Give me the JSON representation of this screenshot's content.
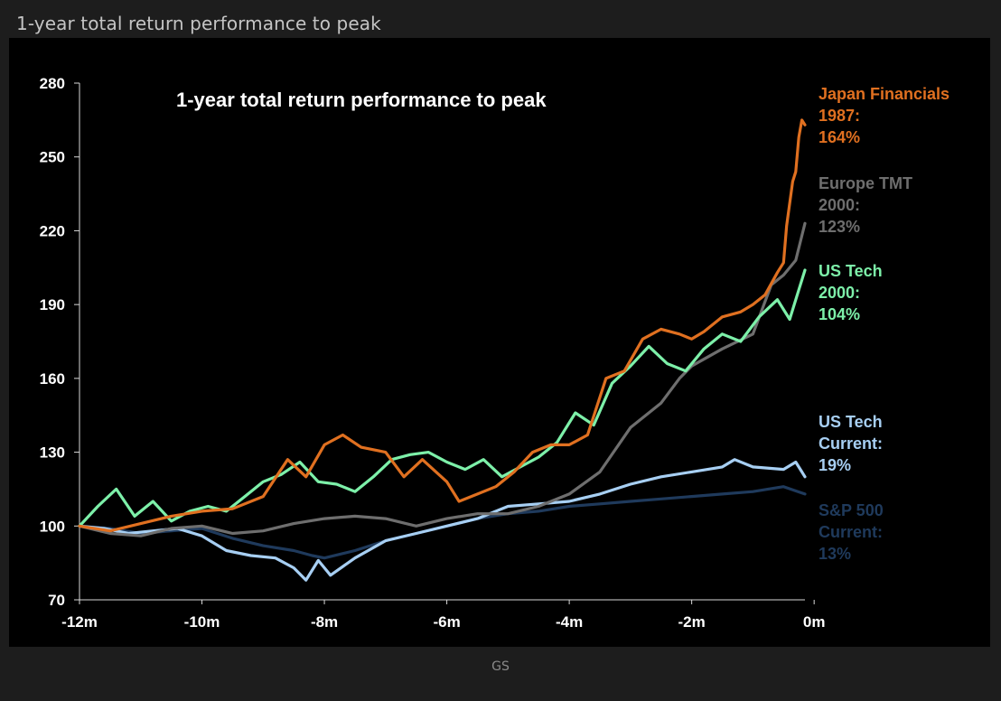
{
  "page_title": "1-year total return performance to peak",
  "source": "GS",
  "chart_data": {
    "type": "line",
    "title": "1-year total return performance to peak",
    "x_tick_labels": [
      "-12m",
      "-10m",
      "-8m",
      "-6m",
      "-4m",
      "-2m",
      "0m"
    ],
    "x_ticks_months": [
      -12,
      -10,
      -8,
      -6,
      -4,
      -2,
      0
    ],
    "xlim": [
      -12,
      -0.15
    ],
    "ylim": [
      70,
      280
    ],
    "y_ticks": [
      70,
      100,
      130,
      160,
      190,
      220,
      250,
      280
    ],
    "grid": false,
    "legend": "right (direct labels)",
    "series": [
      {
        "key": "sp500",
        "label_lines": [
          "S&P 500",
          "Current:",
          "13%"
        ],
        "color": "#1f3a5c",
        "x": [
          -12,
          -11.5,
          -11,
          -10.5,
          -10,
          -9.5,
          -9,
          -8.5,
          -8.2,
          -8,
          -7.5,
          -7,
          -6.5,
          -6,
          -5.5,
          -5,
          -4.5,
          -4,
          -3.5,
          -3,
          -2.5,
          -2,
          -1.5,
          -1,
          -0.5,
          -0.15
        ],
        "y": [
          100,
          99,
          97,
          98,
          99,
          95,
          92,
          90,
          88,
          87,
          90,
          94,
          97,
          100,
          103,
          105,
          106,
          108,
          109,
          110,
          111,
          112,
          113,
          114,
          116,
          113
        ]
      },
      {
        "key": "us_tech_current",
        "label_lines": [
          "US Tech",
          "Current:",
          "19%"
        ],
        "color": "#a7cff3",
        "x": [
          -12,
          -11.6,
          -11.2,
          -10.8,
          -10.4,
          -10,
          -9.6,
          -9.2,
          -8.8,
          -8.5,
          -8.3,
          -8.1,
          -7.9,
          -7.5,
          -7,
          -6.5,
          -6,
          -5.5,
          -5,
          -4.5,
          -4,
          -3.5,
          -3,
          -2.5,
          -2,
          -1.5,
          -1.3,
          -1,
          -0.5,
          -0.3,
          -0.15
        ],
        "y": [
          100,
          99,
          97,
          98,
          99,
          96,
          90,
          88,
          87,
          83,
          78,
          86,
          80,
          87,
          94,
          97,
          100,
          103,
          108,
          109,
          110,
          113,
          117,
          120,
          122,
          124,
          127,
          124,
          123,
          126,
          120
        ]
      },
      {
        "key": "europe_tmt_2000",
        "label_lines": [
          "Europe TMT",
          "2000:",
          "123%"
        ],
        "color": "#6e6e6e",
        "x": [
          -12,
          -11.5,
          -11,
          -10.5,
          -10,
          -9.5,
          -9,
          -8.5,
          -8,
          -7.5,
          -7,
          -6.5,
          -6,
          -5.5,
          -5,
          -4.5,
          -4,
          -3.5,
          -3,
          -2.5,
          -2.2,
          -2,
          -1.5,
          -1,
          -0.7,
          -0.5,
          -0.3,
          -0.15
        ],
        "y": [
          100,
          97,
          96,
          99,
          100,
          97,
          98,
          101,
          103,
          104,
          103,
          100,
          103,
          105,
          105,
          108,
          113,
          122,
          140,
          150,
          160,
          165,
          172,
          178,
          198,
          202,
          208,
          223
        ]
      },
      {
        "key": "us_tech_2000",
        "label_lines": [
          "US Tech",
          "2000:",
          "104%"
        ],
        "color": "#7df0a9",
        "x": [
          -12,
          -11.7,
          -11.4,
          -11.1,
          -10.8,
          -10.5,
          -10.2,
          -9.9,
          -9.6,
          -9.3,
          -9,
          -8.7,
          -8.4,
          -8.1,
          -7.8,
          -7.5,
          -7.2,
          -6.9,
          -6.6,
          -6.3,
          -6,
          -5.7,
          -5.4,
          -5.1,
          -4.8,
          -4.5,
          -4.2,
          -3.9,
          -3.6,
          -3.3,
          -3,
          -2.7,
          -2.4,
          -2.1,
          -1.8,
          -1.5,
          -1.2,
          -0.9,
          -0.6,
          -0.4,
          -0.25,
          -0.15
        ],
        "y": [
          100,
          108,
          115,
          104,
          110,
          102,
          106,
          108,
          106,
          112,
          118,
          121,
          126,
          118,
          117,
          114,
          120,
          127,
          129,
          130,
          126,
          123,
          127,
          120,
          124,
          128,
          134,
          146,
          141,
          158,
          165,
          173,
          166,
          163,
          172,
          178,
          175,
          185,
          192,
          184,
          196,
          204
        ]
      },
      {
        "key": "japan_financials_1987",
        "label_lines": [
          "Japan Financials",
          "1987:",
          "164%"
        ],
        "color": "#e07020",
        "x": [
          -12,
          -11.5,
          -11,
          -10.5,
          -10,
          -9.5,
          -9,
          -8.6,
          -8.3,
          -8,
          -7.7,
          -7.4,
          -7,
          -6.7,
          -6.4,
          -6,
          -5.8,
          -5.5,
          -5.2,
          -4.9,
          -4.6,
          -4.3,
          -4,
          -3.7,
          -3.4,
          -3.1,
          -2.8,
          -2.5,
          -2.2,
          -2,
          -1.8,
          -1.5,
          -1.2,
          -1,
          -0.8,
          -0.6,
          -0.5,
          -0.45,
          -0.35,
          -0.3,
          -0.25,
          -0.2,
          -0.15
        ],
        "y": [
          100,
          98,
          101,
          104,
          106,
          107,
          112,
          127,
          120,
          133,
          137,
          132,
          130,
          120,
          127,
          118,
          110,
          113,
          116,
          122,
          130,
          133,
          133,
          137,
          160,
          163,
          176,
          180,
          178,
          176,
          179,
          185,
          187,
          190,
          194,
          203,
          207,
          222,
          240,
          244,
          258,
          265,
          263
        ]
      }
    ]
  }
}
